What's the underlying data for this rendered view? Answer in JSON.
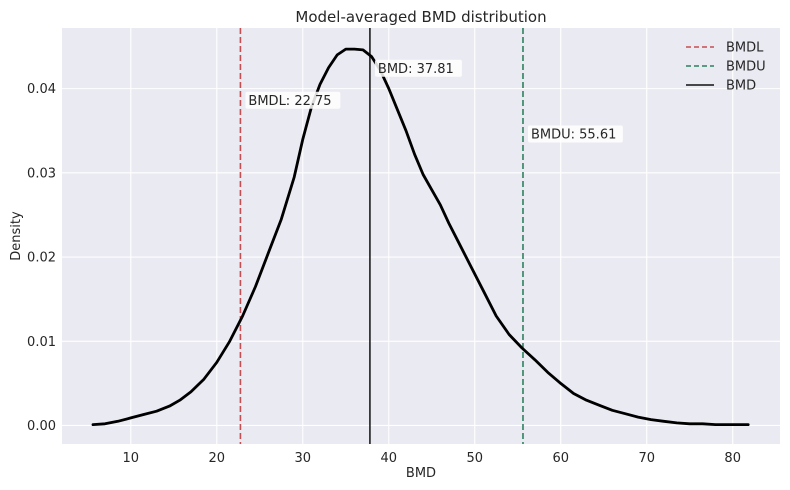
{
  "chart_data": {
    "type": "line",
    "title": "Model-averaged BMD distribution",
    "xlabel": "BMD",
    "ylabel": "Density",
    "xlim": [
      2.0,
      85.5
    ],
    "ylim": [
      -0.0022,
      0.0472
    ],
    "x_ticks": [
      10,
      20,
      30,
      40,
      50,
      60,
      70,
      80
    ],
    "y_ticks": [
      0.0,
      0.01,
      0.02,
      0.03,
      0.04
    ],
    "y_tick_labels": [
      "0.00",
      "0.01",
      "0.02",
      "0.03",
      "0.04"
    ],
    "grid": true,
    "legend_position": "top-right",
    "legend": [
      {
        "label": "BMDL",
        "color": "#c44e52",
        "style": "dashed"
      },
      {
        "label": "BMDU",
        "color": "#2e8060",
        "style": "dashed"
      },
      {
        "label": "BMD",
        "color": "#111111",
        "style": "solid"
      }
    ],
    "series": [
      {
        "color": "#000000",
        "x": [
          5.6,
          7.0,
          8.5,
          10.0,
          11.5,
          13.0,
          14.5,
          15.7,
          17.0,
          18.5,
          20.0,
          21.5,
          23.0,
          24.5,
          26.0,
          27.5,
          29.0,
          30.0,
          31.0,
          32.0,
          33.0,
          34.0,
          35.0,
          36.0,
          37.0,
          38.0,
          39.0,
          40.0,
          41.0,
          42.0,
          43.0,
          44.0,
          45.0,
          46.0,
          47.0,
          48.0,
          49.5,
          51.0,
          52.5,
          54.0,
          55.5,
          57.0,
          58.5,
          60.0,
          61.5,
          63.0,
          64.5,
          66.0,
          67.5,
          69.0,
          70.5,
          72.0,
          73.5,
          75.0,
          76.5,
          78.0,
          79.5,
          81.0,
          81.8
        ],
        "y": [
          0.0001,
          0.0002,
          0.0005,
          0.0009,
          0.0013,
          0.0017,
          0.0023,
          0.003,
          0.004,
          0.0055,
          0.0075,
          0.01,
          0.013,
          0.0165,
          0.0205,
          0.0245,
          0.0295,
          0.034,
          0.0378,
          0.0405,
          0.0425,
          0.044,
          0.0447,
          0.0447,
          0.0446,
          0.0438,
          0.0422,
          0.04,
          0.0375,
          0.035,
          0.0322,
          0.0298,
          0.028,
          0.0262,
          0.024,
          0.022,
          0.019,
          0.016,
          0.013,
          0.0108,
          0.0092,
          0.0078,
          0.0063,
          0.005,
          0.0038,
          0.003,
          0.0024,
          0.0018,
          0.0014,
          0.001,
          0.0007,
          0.0005,
          0.0003,
          0.0002,
          0.0002,
          0.0001,
          0.0001,
          0.0001,
          0.0001
        ]
      }
    ],
    "vlines": [
      {
        "name": "BMDL",
        "x": 22.75,
        "color": "#c44e52",
        "style": "dashed",
        "label": "BMDL: 22.75",
        "label_y": 0.0382
      },
      {
        "name": "BMDU",
        "x": 55.61,
        "color": "#2e8060",
        "style": "dashed",
        "label": "BMDU: 55.61",
        "label_y": 0.0342
      },
      {
        "name": "BMD",
        "x": 37.81,
        "color": "#111111",
        "style": "solid",
        "label": "BMD: 37.81",
        "label_y": 0.042
      }
    ]
  }
}
